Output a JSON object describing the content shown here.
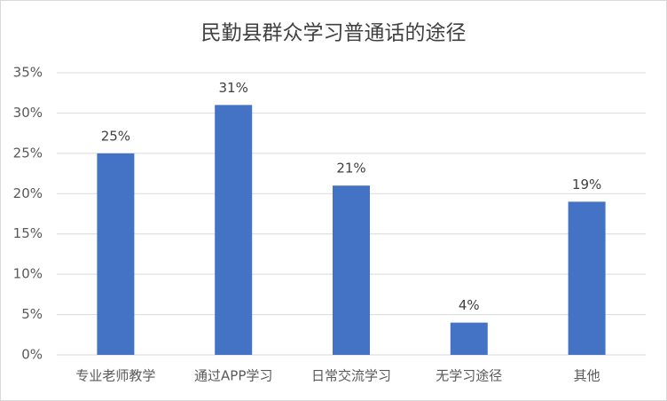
{
  "chart_data": {
    "type": "bar",
    "title": "民勤县群众学习普通话的途径",
    "categories": [
      "专业老师教学",
      "通过APP学习",
      "日常交流学习",
      "无学习途径",
      "其他"
    ],
    "values": [
      25,
      31,
      21,
      4,
      19
    ],
    "value_labels": [
      "25%",
      "31%",
      "21%",
      "4%",
      "19%"
    ],
    "color": "#4472c4",
    "ylim": [
      0,
      35
    ],
    "yticks": [
      {
        "value": 0,
        "label": "0%"
      },
      {
        "value": 5,
        "label": "5%"
      },
      {
        "value": 10,
        "label": "10%"
      },
      {
        "value": 15,
        "label": "15%"
      },
      {
        "value": 20,
        "label": "20%"
      },
      {
        "value": 25,
        "label": "25%"
      },
      {
        "value": 30,
        "label": "30%"
      },
      {
        "value": 35,
        "label": "35%"
      }
    ],
    "grid": true
  }
}
